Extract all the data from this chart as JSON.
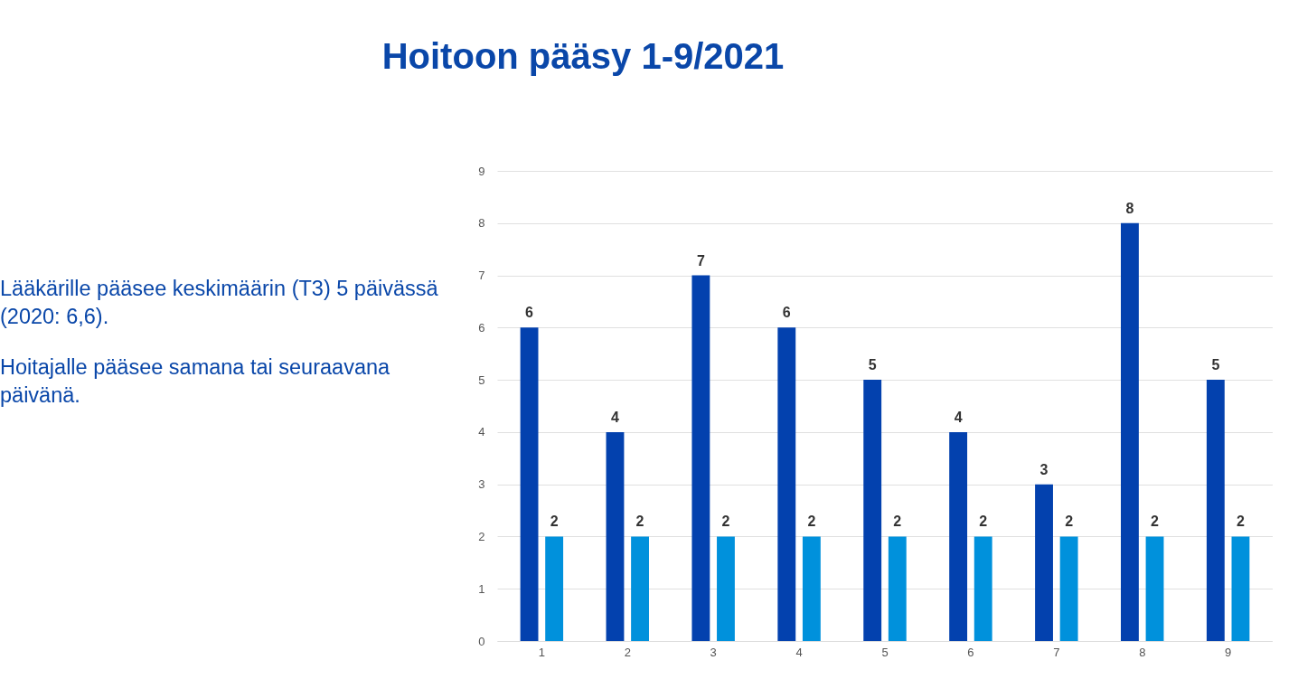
{
  "chart_data": {
    "type": "bar",
    "title": "Hoitoon pääsy 1-9/2021",
    "annotations": [
      "Lääkärille pääsee keskimäärin (T3) 5 päivässä (2020: 6,6).",
      "Hoitajalle pääsee samana tai seuraavana päivänä."
    ],
    "categories": [
      "1",
      "2",
      "3",
      "4",
      "5",
      "6",
      "7",
      "8",
      "9"
    ],
    "series": [
      {
        "color": "#0341ae",
        "values": [
          6,
          4,
          7,
          6,
          5,
          4,
          3,
          8,
          5
        ]
      },
      {
        "color": "#0091dc",
        "values": [
          2,
          2,
          2,
          2,
          2,
          2,
          2,
          2,
          2
        ]
      }
    ],
    "ylim": [
      0,
      9
    ],
    "yticks": [
      0,
      1,
      2,
      3,
      4,
      5,
      6,
      7,
      8,
      9
    ],
    "grid": "y",
    "data_labels": true
  }
}
